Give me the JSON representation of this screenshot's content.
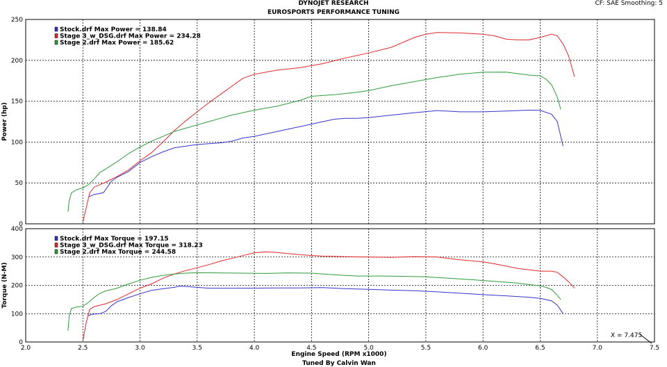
{
  "header": {
    "title": "DYNOJET RESEARCH",
    "subtitle": "EUROSPORTS PERFORMANCE TUNING",
    "corner_info": "CF: SAE  Smoothing: 5"
  },
  "footer": {
    "tuned_by": "Tuned By Calvin Wan"
  },
  "cursor_readout": "X = 7.475",
  "colors": {
    "stock": "#3333cc",
    "stage3": "#e0262a",
    "stage2": "#2e9a3a"
  },
  "chart_data": [
    {
      "type": "line",
      "ylabel": "Power (hp)",
      "ylim": [
        0,
        250
      ],
      "yticks": [
        0,
        50,
        100,
        150,
        200,
        250
      ],
      "xlim": [
        2.0,
        7.5
      ],
      "legend": "top-left",
      "grid": true,
      "series": [
        {
          "name": "Stock.drf Max Power = 138.84",
          "color": "#3333cc",
          "points": [
            [
              2.55,
              33
            ],
            [
              2.6,
              36
            ],
            [
              2.68,
              38
            ],
            [
              2.75,
              52
            ],
            [
              2.8,
              57
            ],
            [
              2.9,
              64
            ],
            [
              3.0,
              75
            ],
            [
              3.1,
              82
            ],
            [
              3.2,
              88
            ],
            [
              3.3,
              93
            ],
            [
              3.4,
              95
            ],
            [
              3.5,
              97
            ],
            [
              3.6,
              98
            ],
            [
              3.7,
              99
            ],
            [
              3.8,
              101
            ],
            [
              3.9,
              105
            ],
            [
              4.0,
              107
            ],
            [
              4.2,
              113
            ],
            [
              4.4,
              119
            ],
            [
              4.6,
              125
            ],
            [
              4.7,
              128
            ],
            [
              4.8,
              129
            ],
            [
              4.9,
              129
            ],
            [
              5.0,
              130
            ],
            [
              5.2,
              133
            ],
            [
              5.4,
              136
            ],
            [
              5.6,
              138.5
            ],
            [
              5.8,
              137
            ],
            [
              6.0,
              137
            ],
            [
              6.2,
              138
            ],
            [
              6.4,
              139
            ],
            [
              6.5,
              138.8
            ],
            [
              6.6,
              134
            ],
            [
              6.65,
              125
            ],
            [
              6.7,
              95
            ]
          ]
        },
        {
          "name": "Stage 3_w_DSG.drf Max Power = 234.28",
          "color": "#e0262a",
          "points": [
            [
              2.5,
              2
            ],
            [
              2.53,
              20
            ],
            [
              2.56,
              38
            ],
            [
              2.6,
              45
            ],
            [
              2.7,
              51
            ],
            [
              2.8,
              58
            ],
            [
              2.9,
              66
            ],
            [
              3.0,
              77
            ],
            [
              3.1,
              87
            ],
            [
              3.2,
              100
            ],
            [
              3.3,
              114
            ],
            [
              3.4,
              126
            ],
            [
              3.5,
              137
            ],
            [
              3.6,
              148
            ],
            [
              3.7,
              158
            ],
            [
              3.8,
              168
            ],
            [
              3.9,
              178
            ],
            [
              4.0,
              183
            ],
            [
              4.2,
              188
            ],
            [
              4.4,
              191
            ],
            [
              4.6,
              196
            ],
            [
              4.8,
              203
            ],
            [
              5.0,
              209
            ],
            [
              5.2,
              216
            ],
            [
              5.4,
              228
            ],
            [
              5.5,
              232
            ],
            [
              5.6,
              234
            ],
            [
              5.8,
              233.5
            ],
            [
              6.0,
              232
            ],
            [
              6.1,
              230
            ],
            [
              6.2,
              226
            ],
            [
              6.3,
              225
            ],
            [
              6.4,
              225
            ],
            [
              6.5,
              228
            ],
            [
              6.6,
              232
            ],
            [
              6.65,
              230
            ],
            [
              6.7,
              220
            ],
            [
              6.75,
              205
            ],
            [
              6.8,
              180
            ]
          ]
        },
        {
          "name": "Stage 2.drf Max Power = 185.62",
          "color": "#2e9a3a",
          "points": [
            [
              2.37,
              15
            ],
            [
              2.38,
              28
            ],
            [
              2.4,
              38
            ],
            [
              2.45,
              42
            ],
            [
              2.5,
              44
            ],
            [
              2.55,
              48
            ],
            [
              2.6,
              55
            ],
            [
              2.65,
              63
            ],
            [
              2.7,
              67
            ],
            [
              2.8,
              76
            ],
            [
              2.9,
              86
            ],
            [
              3.0,
              94
            ],
            [
              3.1,
              101
            ],
            [
              3.2,
              107
            ],
            [
              3.3,
              113
            ],
            [
              3.4,
              117
            ],
            [
              3.5,
              121
            ],
            [
              3.6,
              125
            ],
            [
              3.7,
              129
            ],
            [
              3.8,
              133
            ],
            [
              3.9,
              136
            ],
            [
              4.0,
              139
            ],
            [
              4.2,
              144
            ],
            [
              4.4,
              151
            ],
            [
              4.5,
              156
            ],
            [
              4.7,
              158
            ],
            [
              4.9,
              161
            ],
            [
              5.0,
              163
            ],
            [
              5.2,
              169
            ],
            [
              5.4,
              174
            ],
            [
              5.6,
              179
            ],
            [
              5.8,
              183
            ],
            [
              6.0,
              185.5
            ],
            [
              6.2,
              185.6
            ],
            [
              6.4,
              182
            ],
            [
              6.5,
              181
            ],
            [
              6.55,
              177
            ],
            [
              6.6,
              170
            ],
            [
              6.65,
              155
            ],
            [
              6.68,
              140
            ]
          ]
        }
      ]
    },
    {
      "type": "line",
      "title": "",
      "xlabel": "Engine Speed (RPM x1000)",
      "ylabel": "Torque (N-M)",
      "ylim": [
        0,
        400
      ],
      "yticks": [
        0,
        100,
        200,
        300,
        400
      ],
      "xlim": [
        2.0,
        7.5
      ],
      "xticks": [
        2.0,
        2.5,
        3.0,
        3.5,
        4.0,
        4.5,
        5.0,
        5.5,
        6.0,
        6.5,
        7.0,
        7.5
      ],
      "legend": "top-left",
      "grid": true,
      "series": [
        {
          "name": "Stock.drf Max Torque = 197.15",
          "color": "#3333cc",
          "points": [
            [
              2.55,
              93
            ],
            [
              2.58,
              98
            ],
            [
              2.65,
              100
            ],
            [
              2.7,
              108
            ],
            [
              2.75,
              128
            ],
            [
              2.8,
              142
            ],
            [
              2.9,
              157
            ],
            [
              3.0,
              170
            ],
            [
              3.1,
              182
            ],
            [
              3.2,
              188
            ],
            [
              3.3,
              193
            ],
            [
              3.35,
              197
            ],
            [
              3.4,
              196
            ],
            [
              3.5,
              193
            ],
            [
              3.6,
              190
            ],
            [
              3.8,
              190
            ],
            [
              4.0,
              190
            ],
            [
              4.2,
              191
            ],
            [
              4.4,
              191
            ],
            [
              4.6,
              192
            ],
            [
              4.8,
              188
            ],
            [
              5.0,
              186
            ],
            [
              5.2,
              183
            ],
            [
              5.4,
              181
            ],
            [
              5.6,
              177
            ],
            [
              5.8,
              172
            ],
            [
              6.0,
              167
            ],
            [
              6.2,
              163
            ],
            [
              6.4,
              158
            ],
            [
              6.5,
              154
            ],
            [
              6.6,
              145
            ],
            [
              6.65,
              130
            ],
            [
              6.7,
              100
            ]
          ]
        },
        {
          "name": "Stage 3_w_DSG.drf Max Torque = 318.23",
          "color": "#e0262a",
          "points": [
            [
              2.5,
              5
            ],
            [
              2.53,
              70
            ],
            [
              2.56,
              115
            ],
            [
              2.6,
              125
            ],
            [
              2.7,
              135
            ],
            [
              2.8,
              150
            ],
            [
              2.9,
              170
            ],
            [
              3.0,
              190
            ],
            [
              3.1,
              205
            ],
            [
              3.2,
              225
            ],
            [
              3.3,
              240
            ],
            [
              3.4,
              252
            ],
            [
              3.5,
              262
            ],
            [
              3.6,
              273
            ],
            [
              3.7,
              285
            ],
            [
              3.8,
              295
            ],
            [
              3.9,
              305
            ],
            [
              4.0,
              315
            ],
            [
              4.1,
              318
            ],
            [
              4.2,
              316
            ],
            [
              4.4,
              308
            ],
            [
              4.6,
              303
            ],
            [
              4.8,
              301
            ],
            [
              5.0,
              300
            ],
            [
              5.2,
              299
            ],
            [
              5.4,
              301
            ],
            [
              5.6,
              300
            ],
            [
              5.8,
              290
            ],
            [
              6.0,
              283
            ],
            [
              6.1,
              276
            ],
            [
              6.2,
              268
            ],
            [
              6.3,
              260
            ],
            [
              6.4,
              255
            ],
            [
              6.5,
              250
            ],
            [
              6.6,
              250
            ],
            [
              6.65,
              246
            ],
            [
              6.7,
              230
            ],
            [
              6.75,
              212
            ],
            [
              6.8,
              190
            ]
          ]
        },
        {
          "name": "Stage 2.drf Max Torque = 244.58",
          "color": "#2e9a3a",
          "points": [
            [
              2.37,
              40
            ],
            [
              2.38,
              90
            ],
            [
              2.4,
              118
            ],
            [
              2.45,
              124
            ],
            [
              2.5,
              126
            ],
            [
              2.55,
              140
            ],
            [
              2.6,
              158
            ],
            [
              2.65,
              172
            ],
            [
              2.7,
              180
            ],
            [
              2.8,
              190
            ],
            [
              2.9,
              205
            ],
            [
              3.0,
              218
            ],
            [
              3.1,
              228
            ],
            [
              3.2,
              235
            ],
            [
              3.3,
              240
            ],
            [
              3.4,
              243
            ],
            [
              3.5,
              244.5
            ],
            [
              3.7,
              244
            ],
            [
              3.9,
              243
            ],
            [
              4.1,
              242
            ],
            [
              4.3,
              244
            ],
            [
              4.5,
              243
            ],
            [
              4.7,
              237
            ],
            [
              4.9,
              233
            ],
            [
              5.1,
              233
            ],
            [
              5.3,
              232
            ],
            [
              5.5,
              230
            ],
            [
              5.7,
              225
            ],
            [
              5.9,
              220
            ],
            [
              6.1,
              214
            ],
            [
              6.3,
              208
            ],
            [
              6.4,
              203
            ],
            [
              6.5,
              198
            ],
            [
              6.55,
              193
            ],
            [
              6.6,
              185
            ],
            [
              6.65,
              165
            ],
            [
              6.68,
              150
            ]
          ]
        }
      ]
    }
  ]
}
